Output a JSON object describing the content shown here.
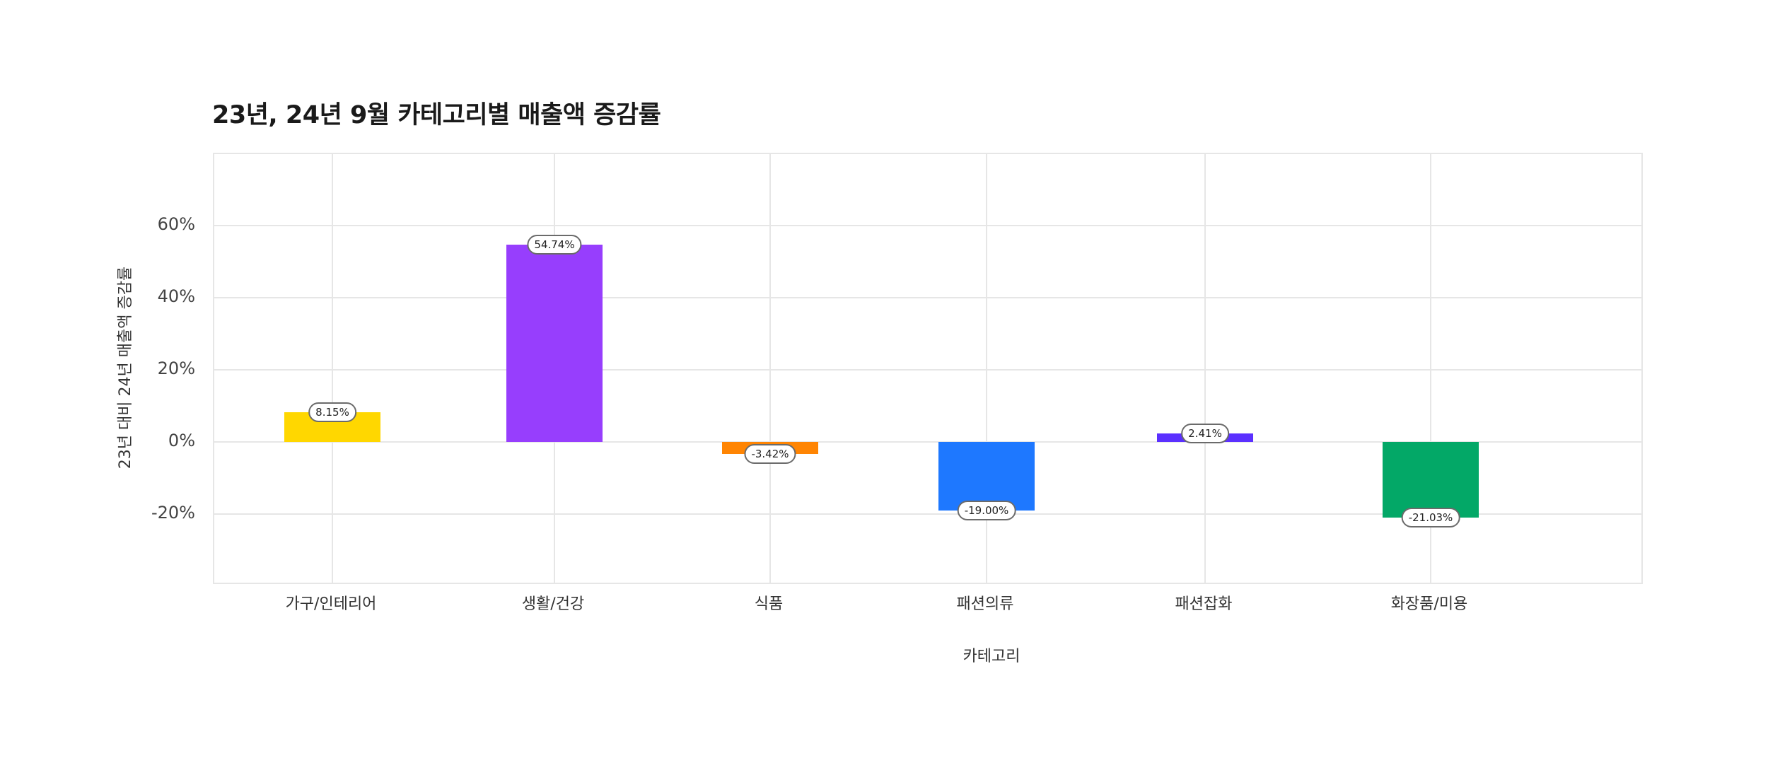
{
  "chart_data": {
    "type": "bar",
    "title": "23년, 24년 9월 카테고리별 매출액 증감률",
    "xlabel": "카테고리",
    "ylabel": "23년 대비 24년 매출액 증감률",
    "categories": [
      "가구/인테리어",
      "생활/건강",
      "식품",
      "패션의류",
      "패션잡화",
      "화장품/미용"
    ],
    "values": [
      8.15,
      54.74,
      -3.42,
      -19.0,
      2.41,
      -21.03
    ],
    "value_labels": [
      "8.15%",
      "54.74%",
      "-3.42%",
      "-19.00%",
      "2.41%",
      "-21.03%"
    ],
    "colors": [
      "#FFD700",
      "#973EFD",
      "#FF8503",
      "#1E78FF",
      "#5B30FF",
      "#03A867"
    ],
    "yticks": [
      60,
      40,
      20,
      0,
      -20
    ],
    "ytick_labels": [
      "60%",
      "40%",
      "20%",
      "0%",
      "-20%"
    ],
    "ylim": [
      -40,
      79
    ],
    "grid": true,
    "legend": "none"
  }
}
